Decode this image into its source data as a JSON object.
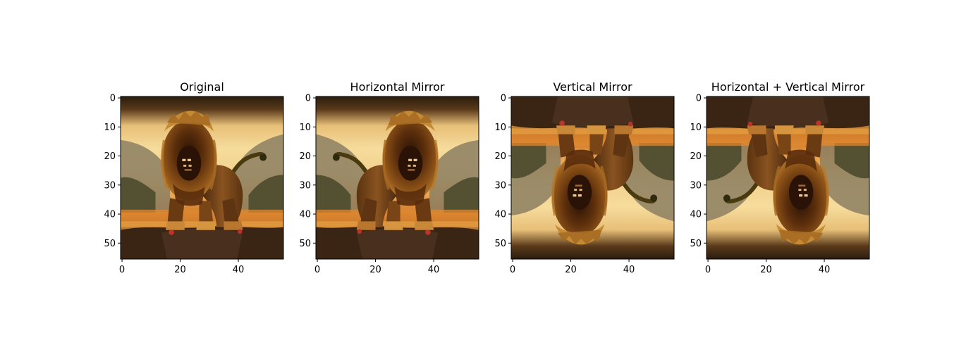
{
  "chart_data": [
    {
      "type": "image",
      "title": "Original",
      "transform": "none",
      "xlim": [
        0,
        56
      ],
      "ylim": [
        56,
        0
      ],
      "xticks": [
        0,
        20,
        40
      ],
      "yticks": [
        0,
        10,
        20,
        30,
        40,
        50
      ],
      "xtick_labels": [
        "0",
        "20",
        "40"
      ],
      "ytick_labels": [
        "0",
        "10",
        "20",
        "30",
        "40",
        "50"
      ]
    },
    {
      "type": "image",
      "title": "Horizontal Mirror",
      "transform": "flip-horizontal",
      "xlim": [
        0,
        56
      ],
      "ylim": [
        56,
        0
      ],
      "xticks": [
        0,
        20,
        40
      ],
      "yticks": [
        0,
        10,
        20,
        30,
        40,
        50
      ],
      "xtick_labels": [
        "0",
        "20",
        "40"
      ],
      "ytick_labels": [
        "0",
        "10",
        "20",
        "30",
        "40",
        "50"
      ]
    },
    {
      "type": "image",
      "title": "Vertical Mirror",
      "transform": "flip-vertical",
      "xlim": [
        0,
        56
      ],
      "ylim": [
        56,
        0
      ],
      "xticks": [
        0,
        20,
        40
      ],
      "yticks": [
        0,
        10,
        20,
        30,
        40,
        50
      ],
      "xtick_labels": [
        "0",
        "20",
        "40"
      ],
      "ytick_labels": [
        "0",
        "10",
        "20",
        "30",
        "40",
        "50"
      ]
    },
    {
      "type": "image",
      "title": "Horizontal + Vertical Mirror",
      "transform": "flip-both",
      "xlim": [
        0,
        56
      ],
      "ylim": [
        56,
        0
      ],
      "xticks": [
        0,
        20,
        40
      ],
      "yticks": [
        0,
        10,
        20,
        30,
        40,
        50
      ],
      "xtick_labels": [
        "0",
        "20",
        "40"
      ],
      "ytick_labels": [
        "0",
        "10",
        "20",
        "30",
        "40",
        "50"
      ]
    }
  ],
  "image_subject": "lion-photo",
  "colors": {
    "sky_top": "#3b2a16",
    "sky_glow": "#f3d58f",
    "sky_mid": "#e9b564",
    "hills": "#7a6a4a",
    "horizon": "#d9772a",
    "ground": "#3a2716",
    "mane": "#7a4512",
    "mane_dark": "#3a1d08",
    "face": "#2b1406",
    "body": "#6b3a10",
    "highlight": "#d79a3c",
    "accent_red": "#b8312a",
    "axis": "#000000"
  }
}
